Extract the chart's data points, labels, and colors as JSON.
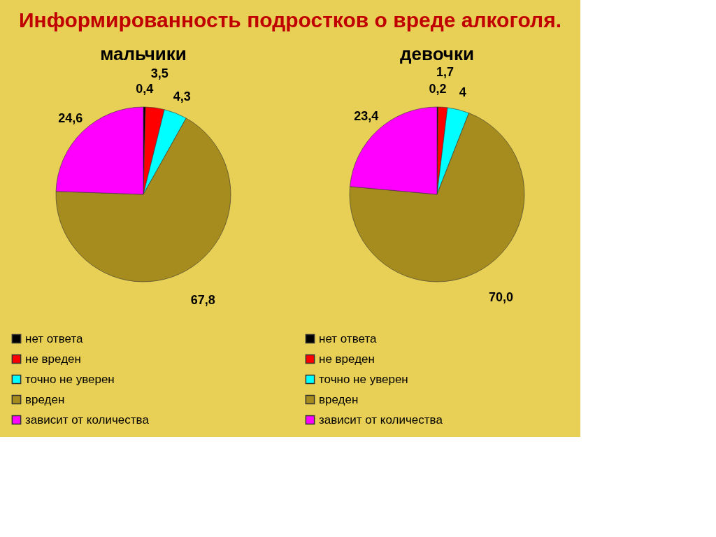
{
  "chart_data": [
    {
      "type": "pie",
      "title": "Информированность подростков о вреде алкоголя.",
      "subtitle": "мальчики",
      "categories": [
        "нет ответа",
        "не вреден",
        "точно не уверен",
        "вреден",
        "зависит от количества"
      ],
      "values": [
        0.4,
        3.5,
        4.3,
        67.8,
        24.6
      ],
      "value_labels": [
        "0,4",
        "3,5",
        "4,3",
        "67,8",
        "24,6"
      ],
      "colors": [
        "#000000",
        "#ff0000",
        "#00ffff",
        "#a68c1e",
        "#ff00ff"
      ],
      "legend": "bottom"
    },
    {
      "type": "pie",
      "title": "девочки",
      "categories": [
        "нет ответа",
        "не вреден",
        "точно не уверен",
        "вреден",
        "зависит от количества"
      ],
      "values": [
        0.2,
        1.7,
        4,
        70.0,
        23.4
      ],
      "value_labels": [
        "0,2",
        "1,7",
        "4",
        "70,0",
        "23,4"
      ],
      "colors": [
        "#000000",
        "#ff0000",
        "#00ffff",
        "#a68c1e",
        "#ff00ff"
      ],
      "legend": "bottom"
    }
  ]
}
